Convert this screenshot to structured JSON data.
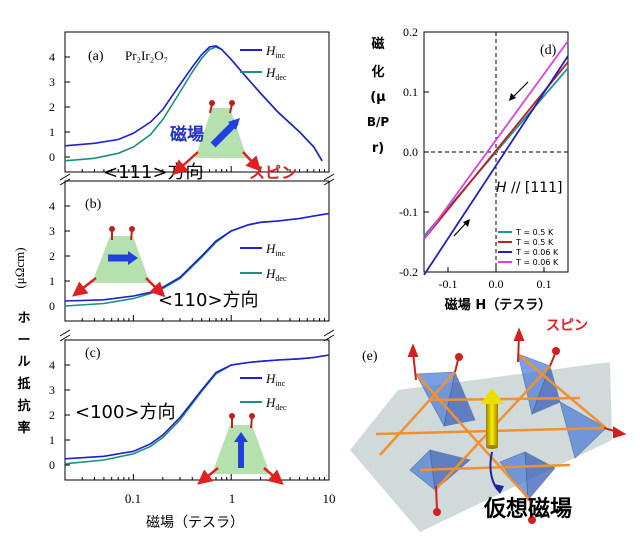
{
  "chart_data": [
    {
      "type": "line",
      "panel": "(a)",
      "compound": "Pr₂Ir₂O₇",
      "direction_label": "<111>方向",
      "field_label": "磁場",
      "spin_label": "スピン",
      "xscale": "log",
      "xlim": [
        0.02,
        10
      ],
      "ylim": [
        -0.6,
        5
      ],
      "yticks": [
        "0",
        "1",
        "2",
        "3",
        "4"
      ],
      "legend": [
        "H_inc",
        "H_dec"
      ],
      "series": [
        {
          "name": "H_inc",
          "color": "#1f1fd0",
          "x": [
            0.02,
            0.04,
            0.07,
            0.1,
            0.15,
            0.2,
            0.3,
            0.4,
            0.5,
            0.6,
            0.7,
            0.8,
            1.0,
            1.5,
            2,
            3,
            5,
            7,
            8.5
          ],
          "y": [
            0.45,
            0.55,
            0.7,
            0.95,
            1.4,
            1.9,
            2.9,
            3.6,
            4.1,
            4.4,
            4.45,
            4.3,
            3.9,
            3.1,
            2.55,
            1.8,
            1.0,
            0.4,
            -0.15
          ]
        },
        {
          "name": "H_dec",
          "color": "#1a9080",
          "x": [
            0.02,
            0.04,
            0.07,
            0.1,
            0.15,
            0.2,
            0.3,
            0.4,
            0.5,
            0.6,
            0.7,
            0.8,
            1.0,
            1.5,
            2,
            3,
            5,
            7,
            8.5
          ],
          "y": [
            -0.15,
            -0.05,
            0.15,
            0.4,
            0.9,
            1.5,
            2.6,
            3.4,
            3.95,
            4.3,
            4.4,
            4.3,
            3.9,
            3.1,
            2.55,
            1.8,
            1.0,
            0.4,
            -0.15
          ]
        }
      ]
    },
    {
      "type": "line",
      "panel": "(b)",
      "direction_label": "<110>方向",
      "xscale": "log",
      "xlim": [
        0.02,
        10
      ],
      "ylim": [
        -0.6,
        5
      ],
      "yticks": [
        "0",
        "1",
        "2",
        "3",
        "4"
      ],
      "legend": [
        "H_inc",
        "H_dec"
      ],
      "series": [
        {
          "name": "H_inc",
          "color": "#1f1fd0",
          "x": [
            0.02,
            0.05,
            0.1,
            0.15,
            0.2,
            0.3,
            0.5,
            0.7,
            1.0,
            1.5,
            2,
            3,
            5,
            7,
            10
          ],
          "y": [
            0.2,
            0.25,
            0.4,
            0.55,
            0.75,
            1.15,
            2.0,
            2.6,
            3.0,
            3.25,
            3.35,
            3.4,
            3.5,
            3.6,
            3.7
          ]
        },
        {
          "name": "H_dec",
          "color": "#1a9080",
          "x": [
            0.02,
            0.05,
            0.1,
            0.15,
            0.2,
            0.3,
            0.5,
            0.7,
            1.0,
            1.5,
            2,
            3,
            5,
            7,
            10
          ],
          "y": [
            0.0,
            0.1,
            0.3,
            0.5,
            0.7,
            1.1,
            1.95,
            2.55,
            3.0,
            3.25,
            3.35,
            3.4,
            3.5,
            3.6,
            3.7
          ]
        }
      ]
    },
    {
      "type": "line",
      "panel": "(c)",
      "direction_label": "<100>方向",
      "xscale": "log",
      "xlim": [
        0.02,
        10
      ],
      "ylim": [
        -0.6,
        5
      ],
      "yticks": [
        "0",
        "1",
        "2",
        "3",
        "4"
      ],
      "xticks": [
        "0.1",
        "1",
        "10"
      ],
      "xlabel": "磁場（テスラ）",
      "ylabel_unit": "(μΩcm)",
      "ylabel_kanji": [
        "ホ",
        "ー",
        "ル",
        "抵",
        "抗",
        "率"
      ],
      "legend": [
        "H_inc",
        "H_dec"
      ],
      "series": [
        {
          "name": "H_inc",
          "color": "#1f1fd0",
          "x": [
            0.02,
            0.05,
            0.1,
            0.15,
            0.2,
            0.3,
            0.5,
            0.7,
            1.0,
            1.5,
            2,
            3,
            5,
            7,
            10
          ],
          "y": [
            0.25,
            0.35,
            0.55,
            0.85,
            1.2,
            1.9,
            3.0,
            3.7,
            4.0,
            4.1,
            4.15,
            4.2,
            4.25,
            4.3,
            4.4
          ]
        },
        {
          "name": "H_dec",
          "color": "#1a9080",
          "x": [
            0.02,
            0.05,
            0.1,
            0.15,
            0.2,
            0.3,
            0.5,
            0.7,
            1.0,
            1.5,
            2,
            3,
            5,
            7,
            10
          ],
          "y": [
            0.05,
            0.2,
            0.45,
            0.75,
            1.1,
            1.8,
            2.95,
            3.65,
            4.0,
            4.1,
            4.15,
            4.2,
            4.25,
            4.3,
            4.4
          ]
        }
      ]
    },
    {
      "type": "line",
      "panel": "(d)",
      "ylabel_chars": [
        "磁",
        "化",
        "(μ",
        "B/P",
        "r)"
      ],
      "xlabel": "磁場 H（テスラ）",
      "annotation": "H // [111]",
      "xlim": [
        -0.15,
        0.15
      ],
      "ylim": [
        -0.2,
        0.2
      ],
      "xticks": [
        -0.1,
        0.0,
        0.1
      ],
      "xtick_labels": [
        "-0.1",
        "0.0",
        "0.1"
      ],
      "yticks": [
        -0.2,
        -0.1,
        0.0,
        0.1,
        0.2
      ],
      "ytick_labels": [
        "-0.2",
        "-0.1",
        "0.0",
        "0.1",
        "0.2"
      ],
      "series": [
        {
          "name": "T = 0.5 K",
          "color": "#1a9aa0",
          "x": [
            -0.15,
            0.15
          ],
          "y": [
            -0.14,
            0.14
          ]
        },
        {
          "name": "T = 0.5 K",
          "color": "#c02020",
          "x": [
            -0.15,
            0.15
          ],
          "y": [
            -0.145,
            0.15
          ]
        },
        {
          "name": "T = 0.06 K",
          "color": "#2020c0",
          "x": [
            -0.15,
            0.15
          ],
          "y": [
            -0.205,
            0.16
          ]
        },
        {
          "name": "T = 0.06 K",
          "color": "#e040e0",
          "x": [
            -0.15,
            0.15
          ],
          "y": [
            -0.145,
            0.185
          ]
        }
      ]
    }
  ],
  "panel_e": {
    "label": "(e)",
    "spin_label": "スピン",
    "caption": "仮想磁場"
  }
}
